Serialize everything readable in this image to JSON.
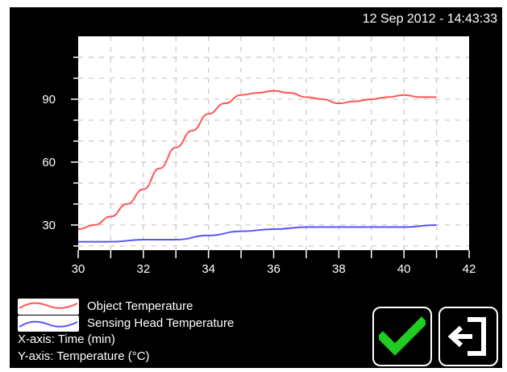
{
  "header": {
    "timestamp": "12 Sep 2012 - 14:43:33"
  },
  "legend": {
    "object_label": "Object Temperature",
    "head_label": "Sensing Head Temperature",
    "x_axis_note": "X-axis: Time (min)",
    "y_axis_note": "Y-axis: Temperature (°C)"
  },
  "buttons": {
    "confirm_icon": "checkmark-icon",
    "exit_icon": "exit-icon"
  },
  "colors": {
    "object": "#ff5555",
    "head": "#5555ff",
    "confirm": "#1fcc1f"
  },
  "chart_data": {
    "type": "line",
    "x_ticks": [
      "30",
      "32",
      "34",
      "36",
      "38",
      "40",
      "42"
    ],
    "y_ticks": [
      "30",
      "60",
      "90"
    ],
    "xlim": [
      30,
      42
    ],
    "ylim": [
      18,
      120
    ],
    "grid": true,
    "series": [
      {
        "name": "Object Temperature",
        "color": "#ff5555",
        "x": [
          30,
          30.5,
          31,
          31.5,
          32,
          32.5,
          33,
          33.5,
          34,
          34.5,
          35,
          35.5,
          36,
          36.5,
          37,
          37.5,
          38,
          38.5,
          39,
          39.5,
          40,
          40.5,
          41
        ],
        "y": [
          28,
          30,
          34,
          40,
          47,
          57,
          67,
          75,
          83,
          88,
          92,
          93,
          94,
          93,
          91,
          90,
          88,
          89,
          90,
          91,
          92,
          91,
          91
        ]
      },
      {
        "name": "Sensing Head Temperature",
        "color": "#5555ff",
        "x": [
          30,
          31,
          32,
          33,
          34,
          35,
          36,
          37,
          38,
          39,
          40,
          41
        ],
        "y": [
          22,
          22,
          23,
          23,
          25,
          27,
          28,
          29,
          29,
          29,
          29,
          30
        ]
      }
    ]
  }
}
